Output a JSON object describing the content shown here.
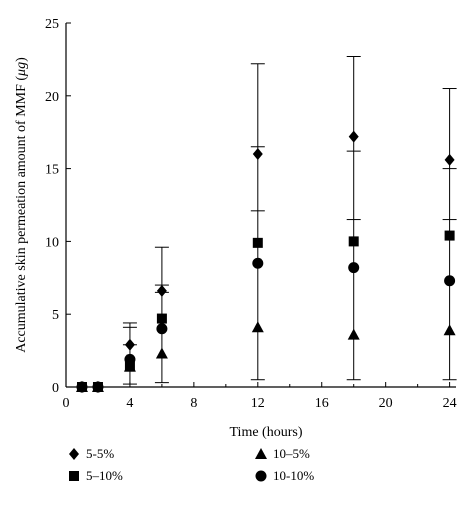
{
  "chart_data": {
    "type": "scatter",
    "title": "",
    "xlabel": "Time (hours)",
    "ylabel_prefix": "Accumulative skin permeation amount of MMF (",
    "ylabel_unit": "μg",
    "ylabel_suffix": ")",
    "xlim": [
      0,
      24.4
    ],
    "ylim": [
      0,
      25
    ],
    "xticks": [
      0,
      4,
      8,
      12,
      16,
      20,
      24
    ],
    "yticks": [
      0,
      5,
      10,
      15,
      20,
      25
    ],
    "grid": false,
    "legend_position": "bottom",
    "series": [
      {
        "name": "5-5%",
        "marker": "diamond",
        "x": [
          1,
          2,
          4,
          6,
          12,
          18,
          24
        ],
        "y": [
          0,
          0,
          2.9,
          6.6,
          16.0,
          17.2,
          15.6
        ],
        "err_low": [
          0,
          0,
          1.4,
          2.6,
          3.9,
          5.6,
          4.4
        ],
        "err_high": [
          0,
          0,
          1.4,
          3.0,
          6.2,
          5.5,
          5.0
        ]
      },
      {
        "name": "5–10%",
        "marker": "square",
        "x": [
          1,
          2,
          4,
          6,
          12,
          18,
          24
        ],
        "y": [
          0,
          0,
          1.4,
          4.7,
          9.9,
          10.0,
          10.4
        ],
        "err_low": [
          0,
          0,
          0,
          0,
          0,
          0,
          0
        ],
        "err_high": [
          0,
          0,
          0,
          0,
          0,
          0,
          0
        ]
      },
      {
        "name": "10–5%",
        "marker": "triangle",
        "x": [
          1,
          2,
          4,
          6,
          12,
          18,
          24
        ],
        "y": [
          0,
          0,
          1.4,
          2.3,
          4.1,
          3.6,
          3.9
        ],
        "err_low": [
          0,
          0,
          0,
          0,
          0,
          0,
          0
        ],
        "err_high": [
          0,
          0,
          0,
          0,
          0,
          0,
          0
        ]
      },
      {
        "name": "10-10%",
        "marker": "circle",
        "x": [
          1,
          2,
          4,
          6,
          12,
          18,
          24
        ],
        "y": [
          0,
          0,
          1.9,
          4.0,
          8.5,
          8.2,
          7.3
        ],
        "err_low": [
          0,
          0,
          0,
          0,
          0,
          0,
          0
        ],
        "err_high": [
          0,
          0,
          0,
          0,
          0,
          0,
          0
        ]
      }
    ],
    "error_bars": [
      {
        "x": 4,
        "low": 0.2,
        "high": 4.4
      },
      {
        "x": 6,
        "low": 0.3,
        "high": 9.6
      },
      {
        "x": 12,
        "low": 0.5,
        "high": 22.2
      },
      {
        "x": 18,
        "low": 0.5,
        "high": 22.7
      },
      {
        "x": 24,
        "low": 0.5,
        "high": 20.5
      }
    ],
    "error_caps": [
      {
        "x": 4,
        "y": 4.4
      },
      {
        "x": 4,
        "y": 4.1
      },
      {
        "x": 4,
        "y": 2.9
      },
      {
        "x": 4,
        "y": 0.2
      },
      {
        "x": 6,
        "y": 9.6
      },
      {
        "x": 6,
        "y": 7.0
      },
      {
        "x": 6,
        "y": 6.5
      },
      {
        "x": 6,
        "y": 0.3
      },
      {
        "x": 12,
        "y": 22.2
      },
      {
        "x": 12,
        "y": 16.5
      },
      {
        "x": 12,
        "y": 12.1
      },
      {
        "x": 12,
        "y": 0.5
      },
      {
        "x": 18,
        "y": 22.7
      },
      {
        "x": 18,
        "y": 16.2
      },
      {
        "x": 18,
        "y": 11.5
      },
      {
        "x": 18,
        "y": 0.5
      },
      {
        "x": 24,
        "y": 20.5
      },
      {
        "x": 24,
        "y": 15.0
      },
      {
        "x": 24,
        "y": 11.5
      },
      {
        "x": 24,
        "y": 0.5
      }
    ]
  }
}
